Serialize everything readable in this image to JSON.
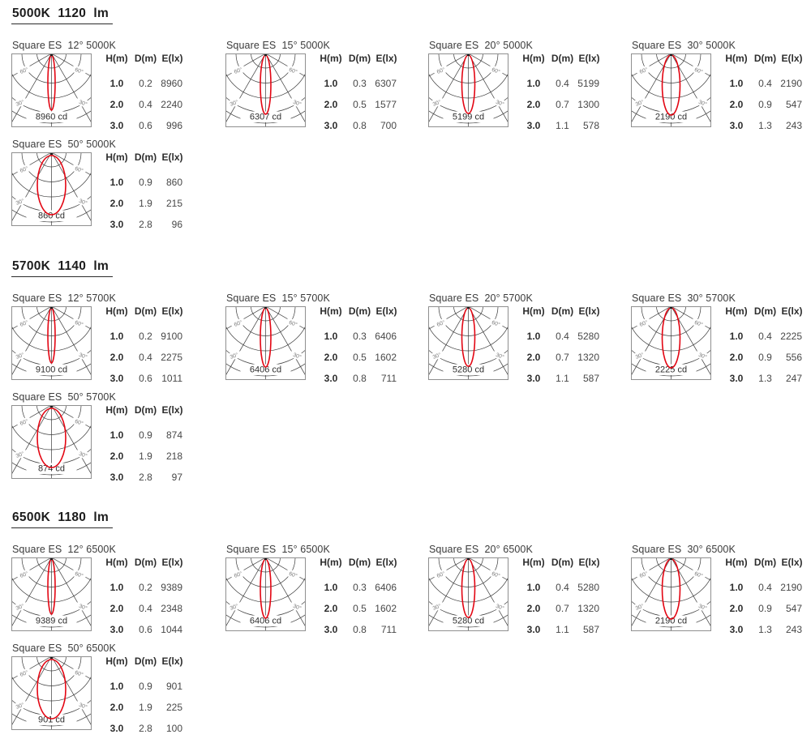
{
  "document": {
    "bg": "#ffffff",
    "accent_red": "#e30613",
    "grid_color": "#3c3c3c",
    "border_color": "#8f8f8f",
    "table_headers": [
      "H(m)",
      "D(m)",
      "E(lx)"
    ],
    "angle_label_upper": "60°",
    "angle_label_lower": "30°"
  },
  "sections": [
    {
      "id": "5000k",
      "title": "5000K  1120  lm",
      "diagrams": [
        {
          "title": "Square ES  12° 5000K",
          "beam_angle": 12,
          "candela": "8960 cd",
          "rows": [
            [
              "1.0",
              "0.2",
              "8960"
            ],
            [
              "2.0",
              "0.4",
              "2240"
            ],
            [
              "3.0",
              "0.6",
              "996"
            ]
          ]
        },
        {
          "title": "Square ES  15° 5000K",
          "beam_angle": 15,
          "candela": "6307 cd",
          "rows": [
            [
              "1.0",
              "0.3",
              "6307"
            ],
            [
              "2.0",
              "0.5",
              "1577"
            ],
            [
              "3.0",
              "0.8",
              "700"
            ]
          ]
        },
        {
          "title": "Square ES  20° 5000K",
          "beam_angle": 20,
          "candela": "5199 cd",
          "rows": [
            [
              "1.0",
              "0.4",
              "5199"
            ],
            [
              "2.0",
              "0.7",
              "1300"
            ],
            [
              "3.0",
              "1.1",
              "578"
            ]
          ]
        },
        {
          "title": "Square ES  30° 5000K",
          "beam_angle": 30,
          "candela": "2190 cd",
          "rows": [
            [
              "1.0",
              "0.4",
              "2190"
            ],
            [
              "2.0",
              "0.9",
              "547"
            ],
            [
              "3.0",
              "1.3",
              "243"
            ]
          ]
        },
        {
          "title": "Square ES  50° 5000K",
          "beam_angle": 50,
          "candela": "860 cd",
          "rows": [
            [
              "1.0",
              "0.9",
              "860"
            ],
            [
              "2.0",
              "1.9",
              "215"
            ],
            [
              "3.0",
              "2.8",
              "96"
            ]
          ]
        }
      ]
    },
    {
      "id": "5700k",
      "title": "5700K  1140  lm",
      "diagrams": [
        {
          "title": "Square ES  12° 5700K",
          "beam_angle": 12,
          "candela": "9100 cd",
          "rows": [
            [
              "1.0",
              "0.2",
              "9100"
            ],
            [
              "2.0",
              "0.4",
              "2275"
            ],
            [
              "3.0",
              "0.6",
              "1011"
            ]
          ]
        },
        {
          "title": "Square ES  15° 5700K",
          "beam_angle": 15,
          "candela": "6406 cd",
          "rows": [
            [
              "1.0",
              "0.3",
              "6406"
            ],
            [
              "2.0",
              "0.5",
              "1602"
            ],
            [
              "3.0",
              "0.8",
              "711"
            ]
          ]
        },
        {
          "title": "Square ES  20° 5700K",
          "beam_angle": 20,
          "candela": "5280 cd",
          "rows": [
            [
              "1.0",
              "0.4",
              "5280"
            ],
            [
              "2.0",
              "0.7",
              "1320"
            ],
            [
              "3.0",
              "1.1",
              "587"
            ]
          ]
        },
        {
          "title": "Square ES  30° 5700K",
          "beam_angle": 30,
          "candela": "2225 cd",
          "rows": [
            [
              "1.0",
              "0.4",
              "2225"
            ],
            [
              "2.0",
              "0.9",
              "556"
            ],
            [
              "3.0",
              "1.3",
              "247"
            ]
          ]
        },
        {
          "title": "Square ES  50° 5700K",
          "beam_angle": 50,
          "candela": "874 cd",
          "rows": [
            [
              "1.0",
              "0.9",
              "874"
            ],
            [
              "2.0",
              "1.9",
              "218"
            ],
            [
              "3.0",
              "2.8",
              "97"
            ]
          ]
        }
      ]
    },
    {
      "id": "6500k",
      "title": "6500K  1180  lm",
      "diagrams": [
        {
          "title": "Square ES  12° 6500K",
          "beam_angle": 12,
          "candela": "9389 cd",
          "rows": [
            [
              "1.0",
              "0.2",
              "9389"
            ],
            [
              "2.0",
              "0.4",
              "2348"
            ],
            [
              "3.0",
              "0.6",
              "1044"
            ]
          ]
        },
        {
          "title": "Square ES  15° 6500K",
          "beam_angle": 15,
          "candela": "6406 cd",
          "rows": [
            [
              "1.0",
              "0.3",
              "6406"
            ],
            [
              "2.0",
              "0.5",
              "1602"
            ],
            [
              "3.0",
              "0.8",
              "711"
            ]
          ]
        },
        {
          "title": "Square ES  20° 6500K",
          "beam_angle": 20,
          "candela": "5280 cd",
          "rows": [
            [
              "1.0",
              "0.4",
              "5280"
            ],
            [
              "2.0",
              "0.7",
              "1320"
            ],
            [
              "3.0",
              "1.1",
              "587"
            ]
          ]
        },
        {
          "title": "Square ES  30° 6500K",
          "beam_angle": 30,
          "candela": "2190 cd",
          "rows": [
            [
              "1.0",
              "0.4",
              "2190"
            ],
            [
              "2.0",
              "0.9",
              "547"
            ],
            [
              "3.0",
              "1.3",
              "243"
            ]
          ]
        },
        {
          "title": "Square ES  50° 6500K",
          "beam_angle": 50,
          "candela": "901 cd",
          "rows": [
            [
              "1.0",
              "0.9",
              "901"
            ],
            [
              "2.0",
              "1.9",
              "225"
            ],
            [
              "3.0",
              "2.8",
              "100"
            ]
          ]
        }
      ]
    }
  ]
}
